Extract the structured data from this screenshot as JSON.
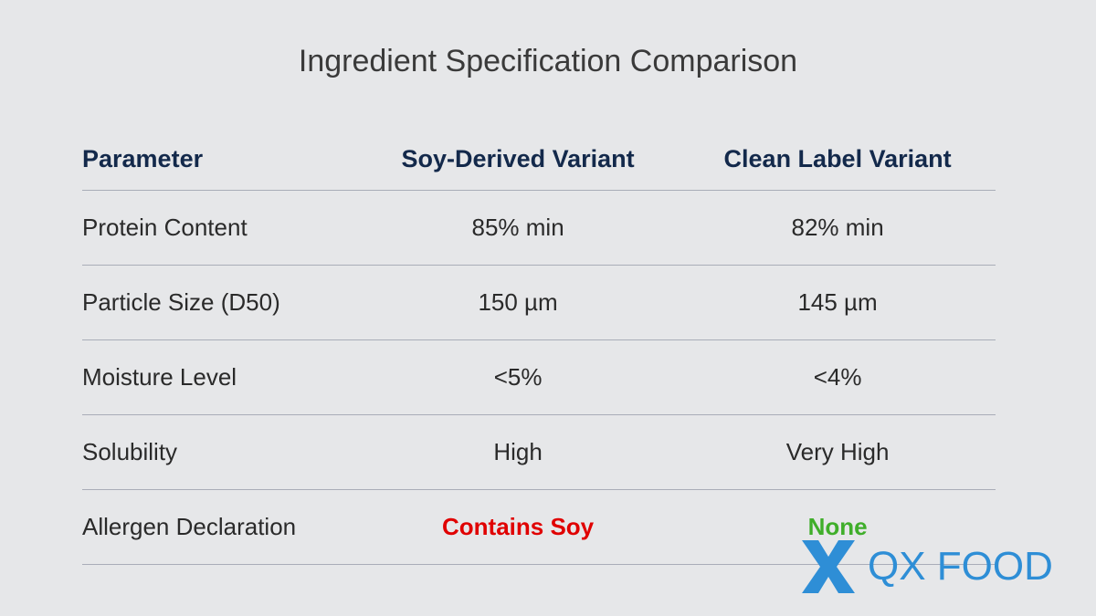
{
  "header": {
    "title": "Ingredient Specification Comparison"
  },
  "table": {
    "columns": [
      "Parameter",
      "Soy-Derived Variant",
      "Clean Label Variant"
    ],
    "rows": [
      [
        "Protein Content",
        "85% min",
        "82% min"
      ],
      [
        "Particle Size (D50)",
        "150 µm",
        "145 µm"
      ],
      [
        "Moisture Level",
        "<5%",
        "<4%"
      ],
      [
        "Solubility",
        "High",
        "Very High"
      ],
      [
        "Allergen Declaration",
        "Contains Soy",
        "None"
      ]
    ]
  },
  "logo": {
    "text": "QX FOOD"
  }
}
